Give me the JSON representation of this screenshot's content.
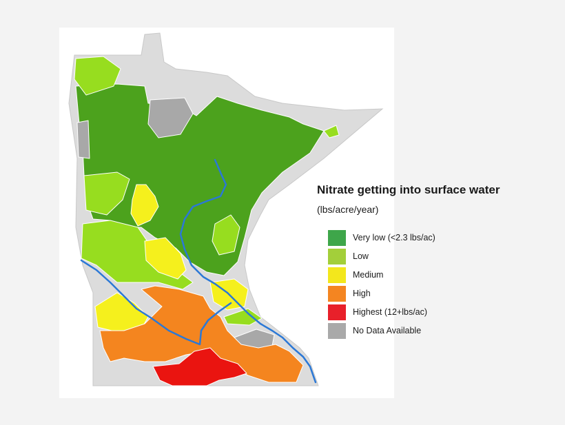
{
  "legend": {
    "title": "Nitrate getting into surface water",
    "subtitle": "(lbs/acre/year)",
    "items": [
      {
        "key": "very_low",
        "label": "Very low (<2.3 lbs/ac)",
        "color": "#3ea64a"
      },
      {
        "key": "low",
        "label": "Low",
        "color": "#a3cf3a"
      },
      {
        "key": "medium",
        "label": "Medium",
        "color": "#f3e71c"
      },
      {
        "key": "high",
        "label": "High",
        "color": "#f48521"
      },
      {
        "key": "highest",
        "label": "Highest (12+lbs/ac)",
        "color": "#e8202a"
      },
      {
        "key": "no_data",
        "label": "No Data Available",
        "color": "#a9a9a9"
      }
    ]
  },
  "map": {
    "colors": {
      "very_low_fill": "#4ca21d",
      "low_fill": "#97dd1f",
      "medium_fill": "#f5f01d",
      "high_fill": "#f4851f",
      "highest_fill": "#ea1410",
      "no_data_fill": "#a8a8a8",
      "outside_fill": "#dcdcdc",
      "river": "#2b78d6",
      "boundary": "#ffffff"
    }
  }
}
